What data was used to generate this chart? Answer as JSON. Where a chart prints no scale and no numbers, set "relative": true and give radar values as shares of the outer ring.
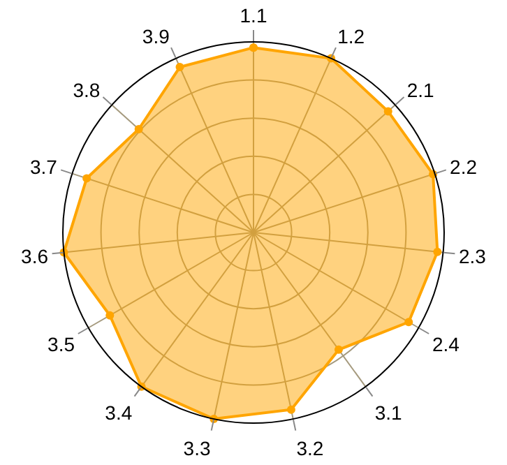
{
  "chart_data": {
    "type": "radar",
    "relative": true,
    "grid": true,
    "marker": "circle",
    "line_style": "solid",
    "categories": [
      "1.1",
      "1.2",
      "2.1",
      "2.2",
      "2.3",
      "2.4",
      "3.1",
      "3.2",
      "3.3",
      "3.4",
      "3.5",
      "3.6",
      "3.7",
      "3.8",
      "3.9"
    ],
    "series": [
      {
        "color": "#ffa500",
        "values": [
          0.97,
          1.0,
          0.95,
          0.99,
          0.97,
          0.94,
          0.76,
          0.95,
          1.0,
          1.0,
          0.87,
          1.0,
          0.92,
          0.81,
          0.95
        ]
      }
    ]
  }
}
